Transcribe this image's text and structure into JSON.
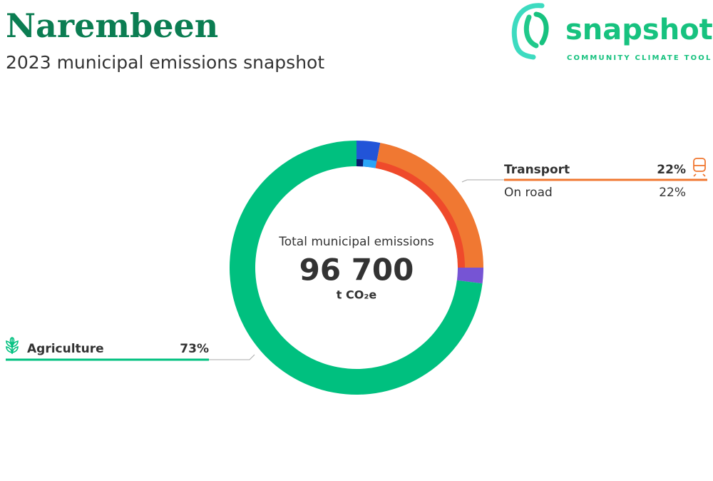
{
  "header": {
    "title": "Narembeen",
    "subtitle": "2023 municipal emissions snapshot"
  },
  "logo": {
    "name": "snapshot",
    "tagline": "COMMUNITY CLIMATE TOOL"
  },
  "chart_data": {
    "type": "donut",
    "center_title": "Total municipal emissions",
    "total": {
      "value": 96700,
      "label": "96 700"
    },
    "unit": "t CO₂e",
    "categories": [
      null,
      "Transport",
      null,
      "Agriculture"
    ],
    "values": [
      3,
      22,
      2,
      73
    ],
    "value_labels": [
      null,
      "22%",
      null,
      "73%"
    ],
    "colors": [
      "#2254d8",
      "#f07832",
      "#7654d4",
      "#00c07f"
    ],
    "subcategories": {
      "categories": [
        null,
        null,
        "On road"
      ],
      "values": [
        1,
        2,
        22
      ],
      "value_labels": [
        null,
        null,
        "22%"
      ],
      "colors": [
        "#0b1a70",
        "#2aa4f6",
        "#ef4a2b"
      ]
    }
  }
}
